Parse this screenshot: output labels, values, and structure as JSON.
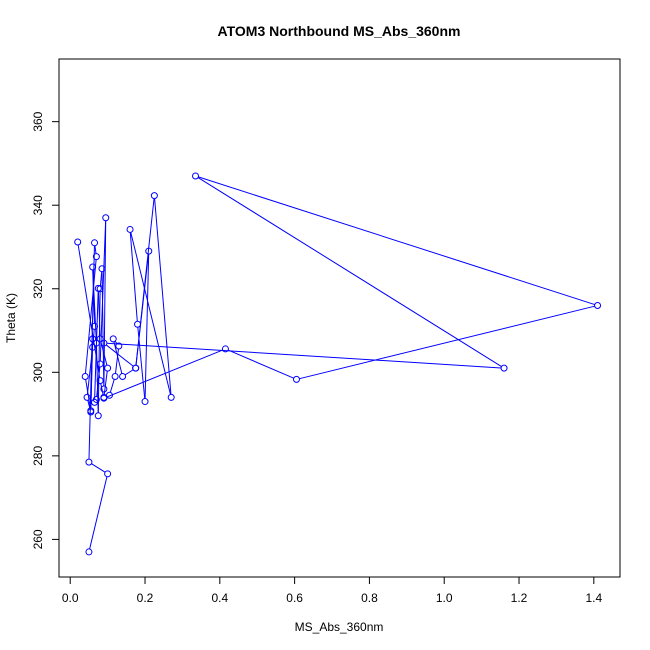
{
  "chart_data": {
    "type": "line",
    "title": "ATOM3 Northbound MS_Abs_360nm",
    "xlabel": "MS_Abs_360nm",
    "ylabel": "Theta (K)",
    "xlim": [
      -0.03,
      1.47
    ],
    "ylim": [
      251,
      375
    ],
    "xticks": [
      0.0,
      0.2,
      0.4,
      0.6,
      0.8,
      1.0,
      1.2,
      1.4
    ],
    "xtick_labels": [
      "0.0",
      "0.2",
      "0.4",
      "0.6",
      "0.8",
      "1.0",
      "1.2",
      "1.4"
    ],
    "yticks": [
      260,
      280,
      300,
      320,
      340,
      360
    ],
    "ytick_labels": [
      "260",
      "280",
      "300",
      "320",
      "340",
      "360"
    ],
    "grid": false,
    "legend": "none",
    "series_color": "#0000ff",
    "marker": "open-circle",
    "points": [
      [
        0.05,
        257.0
      ],
      [
        0.1,
        275.7
      ],
      [
        0.05,
        278.5
      ],
      [
        0.065,
        331.0
      ],
      [
        0.07,
        327.7
      ],
      [
        0.04,
        299.0
      ],
      [
        0.055,
        290.8
      ],
      [
        0.06,
        308.0
      ],
      [
        0.055,
        290.5
      ],
      [
        0.045,
        294.0
      ],
      [
        0.06,
        306.0
      ],
      [
        0.065,
        311.0
      ],
      [
        0.06,
        325.2
      ],
      [
        0.07,
        307.0
      ],
      [
        0.075,
        289.6
      ],
      [
        0.08,
        320.0
      ],
      [
        0.085,
        324.8
      ],
      [
        0.09,
        296.0
      ],
      [
        0.095,
        337.0
      ],
      [
        0.08,
        302.0
      ],
      [
        0.07,
        293.5
      ],
      [
        0.065,
        292.8
      ],
      [
        0.075,
        320.1
      ],
      [
        0.08,
        308.0
      ],
      [
        0.1,
        301.0
      ],
      [
        0.09,
        294.0
      ],
      [
        0.105,
        294.5
      ],
      [
        0.12,
        299.0
      ],
      [
        0.13,
        306.3
      ],
      [
        0.115,
        308.0
      ],
      [
        0.14,
        299.0
      ],
      [
        0.175,
        301.0
      ],
      [
        0.21,
        329.0
      ],
      [
        0.2,
        293.0
      ],
      [
        0.18,
        311.5
      ],
      [
        0.16,
        334.2
      ],
      [
        0.27,
        294.0
      ],
      [
        0.225,
        342.3
      ],
      [
        0.175,
        301.0
      ],
      [
        0.09,
        307.0
      ],
      [
        1.16,
        301.0
      ],
      [
        0.335,
        347.0
      ],
      [
        1.41,
        316.0
      ],
      [
        0.605,
        298.3
      ],
      [
        0.415,
        305.6
      ],
      [
        0.09,
        293.8
      ],
      [
        0.08,
        298.0
      ],
      [
        0.02,
        331.2
      ]
    ]
  }
}
